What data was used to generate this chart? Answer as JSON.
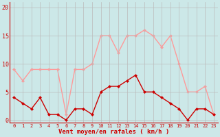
{
  "hours": [
    0,
    1,
    2,
    3,
    4,
    5,
    6,
    7,
    8,
    9,
    10,
    11,
    12,
    13,
    14,
    15,
    16,
    17,
    18,
    19,
    20,
    21,
    22,
    23
  ],
  "wind_mean": [
    4,
    3,
    2,
    4,
    1,
    1,
    0,
    2,
    2,
    1,
    5,
    6,
    6,
    7,
    8,
    5,
    5,
    4,
    3,
    2,
    0,
    2,
    2,
    1
  ],
  "wind_gust": [
    9,
    7,
    9,
    9,
    9,
    9,
    1,
    9,
    9,
    10,
    15,
    15,
    12,
    15,
    15,
    16,
    15,
    13,
    15,
    10,
    5,
    5,
    6,
    1
  ],
  "mean_color": "#cc0000",
  "gust_color": "#ff9999",
  "bg_color": "#cce8e8",
  "grid_color": "#bbbbbb",
  "xlabel": "Vent moyen/en rafales ( km/h )",
  "yticks": [
    0,
    5,
    10,
    15,
    20
  ],
  "ylim": [
    -0.5,
    21
  ],
  "xlim": [
    -0.5,
    23.5
  ]
}
